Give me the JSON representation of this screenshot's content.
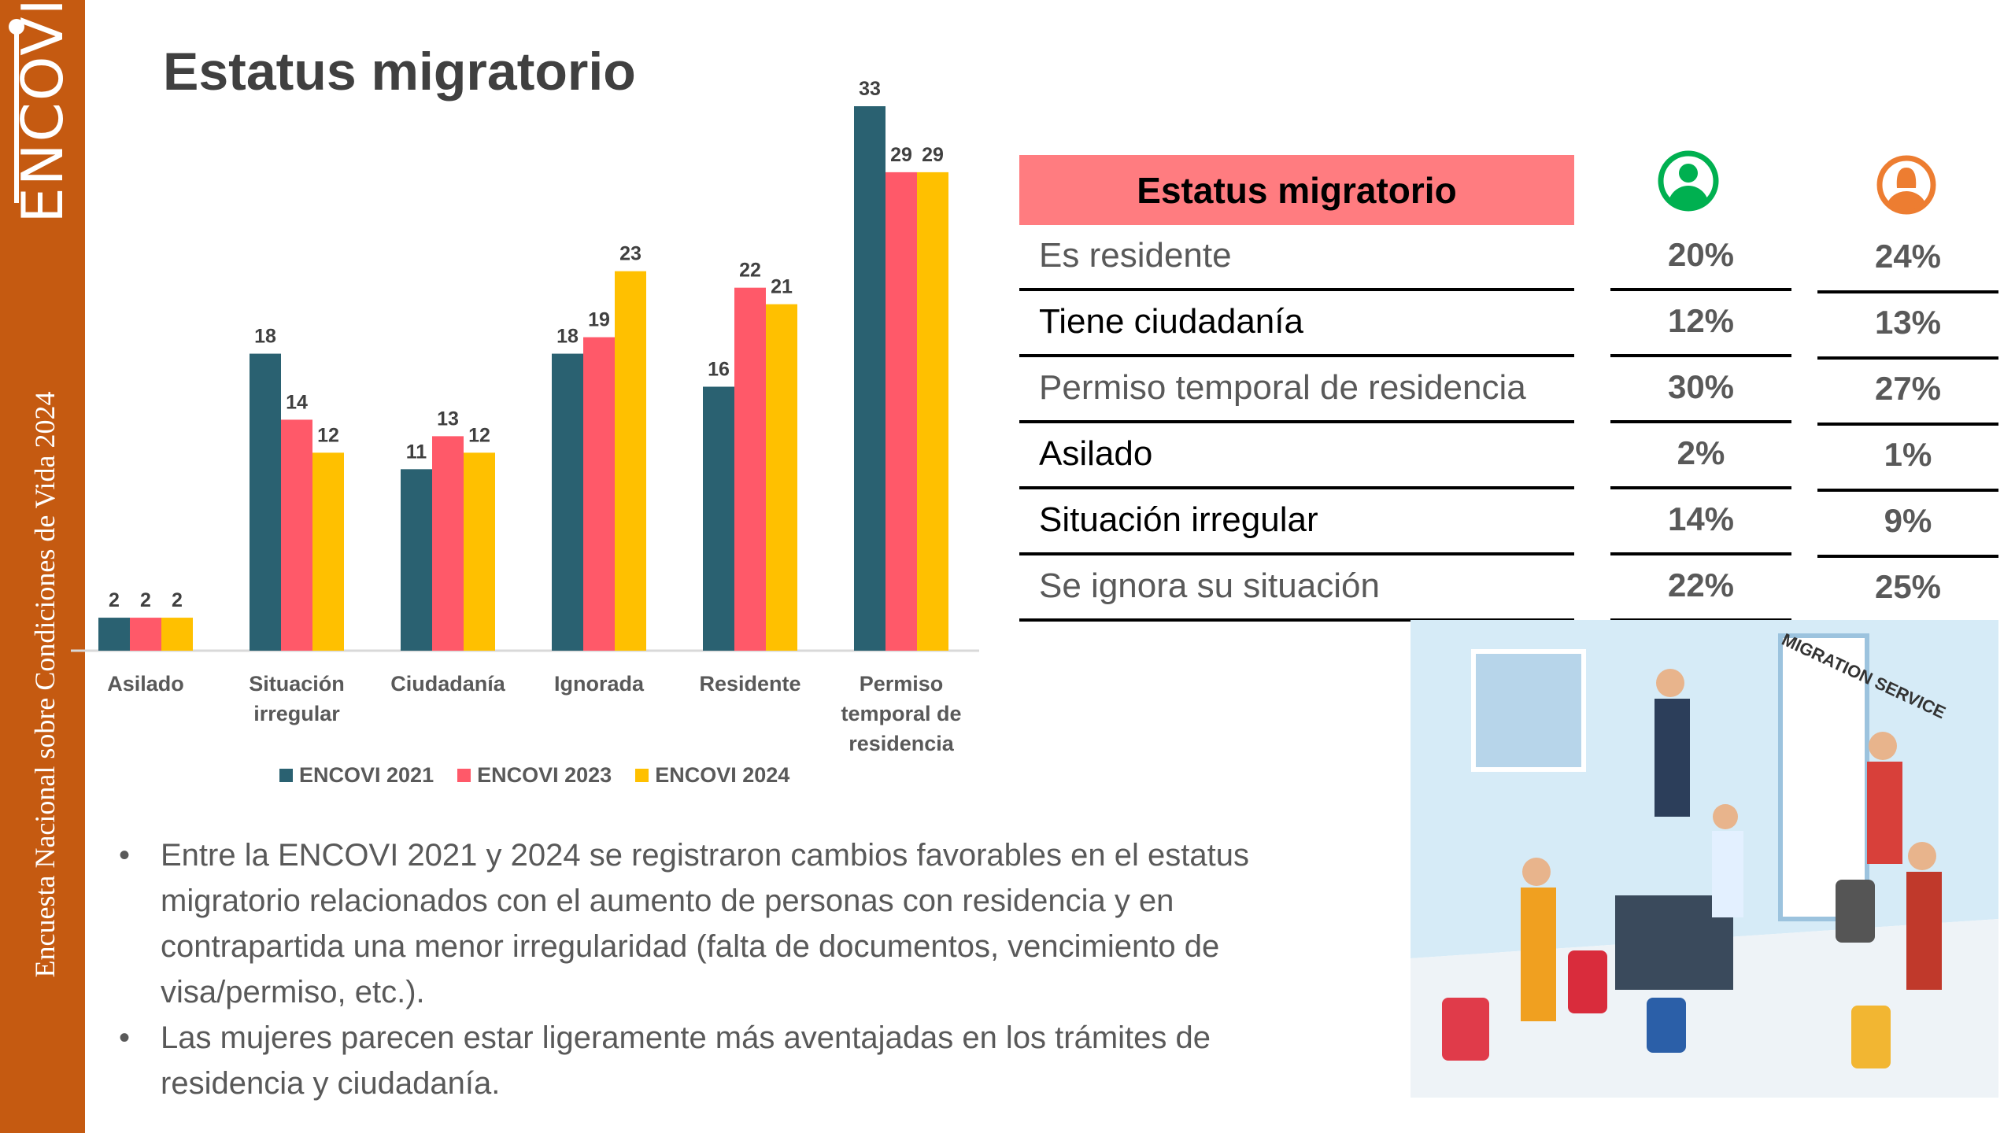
{
  "sidebar": {
    "logo": "ENCOVI",
    "vertical_text": "Encuesta Nacional sobre Condiciones de Vida 2024",
    "color": "#c55a11"
  },
  "title": "Estatus migratorio",
  "chart_data": {
    "type": "bar",
    "categories": [
      "Asilado",
      "Situación irregular",
      "Ciudadanía",
      "Ignorada",
      "Residente",
      "Permiso temporal de residencia"
    ],
    "series": [
      {
        "name": "ENCOVI 2021",
        "color": "#2a6171",
        "values": [
          2,
          18,
          11,
          18,
          16,
          33
        ]
      },
      {
        "name": "ENCOVI 2023",
        "color": "#ff5969",
        "values": [
          2,
          14,
          13,
          19,
          22,
          29
        ]
      },
      {
        "name": "ENCOVI 2024",
        "color": "#ffc000",
        "values": [
          2,
          12,
          12,
          23,
          21,
          29
        ]
      }
    ],
    "ylim": [
      0,
      33
    ],
    "legend": "bottom",
    "grid": false
  },
  "table": {
    "header": "Estatus migratorio",
    "col_icons": [
      "male-person-icon",
      "female-person-icon"
    ],
    "rows": [
      {
        "label": "Es residente",
        "men": "20%",
        "women": "24%",
        "color": "#595959"
      },
      {
        "label": "Tiene ciudadanía",
        "men": "12%",
        "women": "13%",
        "color": "#000000"
      },
      {
        "label": "Permiso temporal de residencia",
        "men": "30%",
        "women": "27%",
        "color": "#595959"
      },
      {
        "label": "Asilado",
        "men": "2%",
        "women": "1%",
        "color": "#000000"
      },
      {
        "label": "Situación irregular",
        "men": "14%",
        "women": "9%",
        "color": "#000000"
      },
      {
        "label": "Se ignora su situación",
        "men": "22%",
        "women": "25%",
        "color": "#595959"
      }
    ]
  },
  "bullets": [
    "Entre la ENCOVI 2021 y 2024 se registraron cambios favorables en el estatus migratorio relacionados con el aumento de personas con residencia y en contrapartida una menor irregularidad (falta de documentos, vencimiento de visa/permiso, etc.).",
    "Las mujeres parecen estar ligeramente más aventajadas en los trámites de residencia y ciudadanía."
  ],
  "illustration": {
    "sign": "MIGRATION SERVICE"
  }
}
